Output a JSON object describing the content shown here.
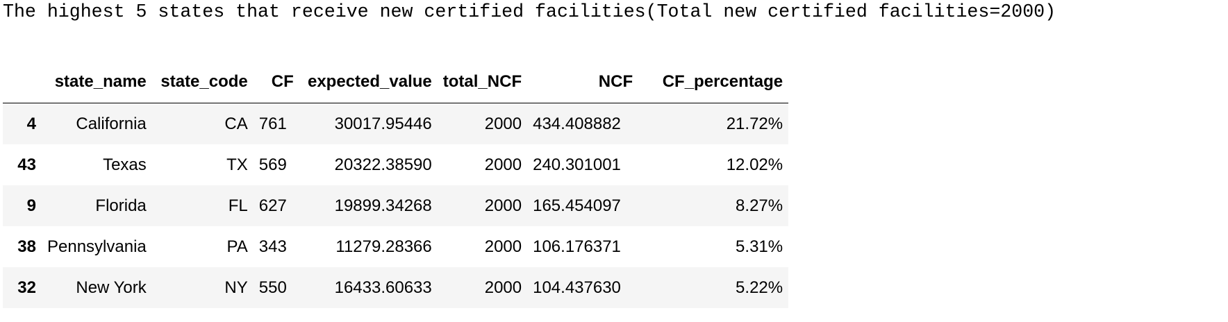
{
  "output": {
    "title": "The highest 5 states that receive new certified facilities(Total new certified facilities=2000)"
  },
  "table": {
    "columns": [
      "",
      "state_name",
      "state_code",
      "CF",
      "expected_value",
      "total_NCF",
      "NCF",
      "CF_percentage"
    ],
    "rows": [
      [
        "4",
        "California",
        "CA",
        "761",
        "30017.95446",
        "2000",
        "434.408882",
        "21.72%"
      ],
      [
        "43",
        "Texas",
        "TX",
        "569",
        "20322.38590",
        "2000",
        "240.301001",
        "12.02%"
      ],
      [
        "9",
        "Florida",
        "FL",
        "627",
        "19899.34268",
        "2000",
        "165.454097",
        "8.27%"
      ],
      [
        "38",
        "Pennsylvania",
        "PA",
        "343",
        "11279.28366",
        "2000",
        "106.176371",
        "5.31%"
      ],
      [
        "32",
        "New York",
        "NY",
        "550",
        "16433.60633",
        "2000",
        "104.437630",
        "5.22%"
      ]
    ]
  }
}
